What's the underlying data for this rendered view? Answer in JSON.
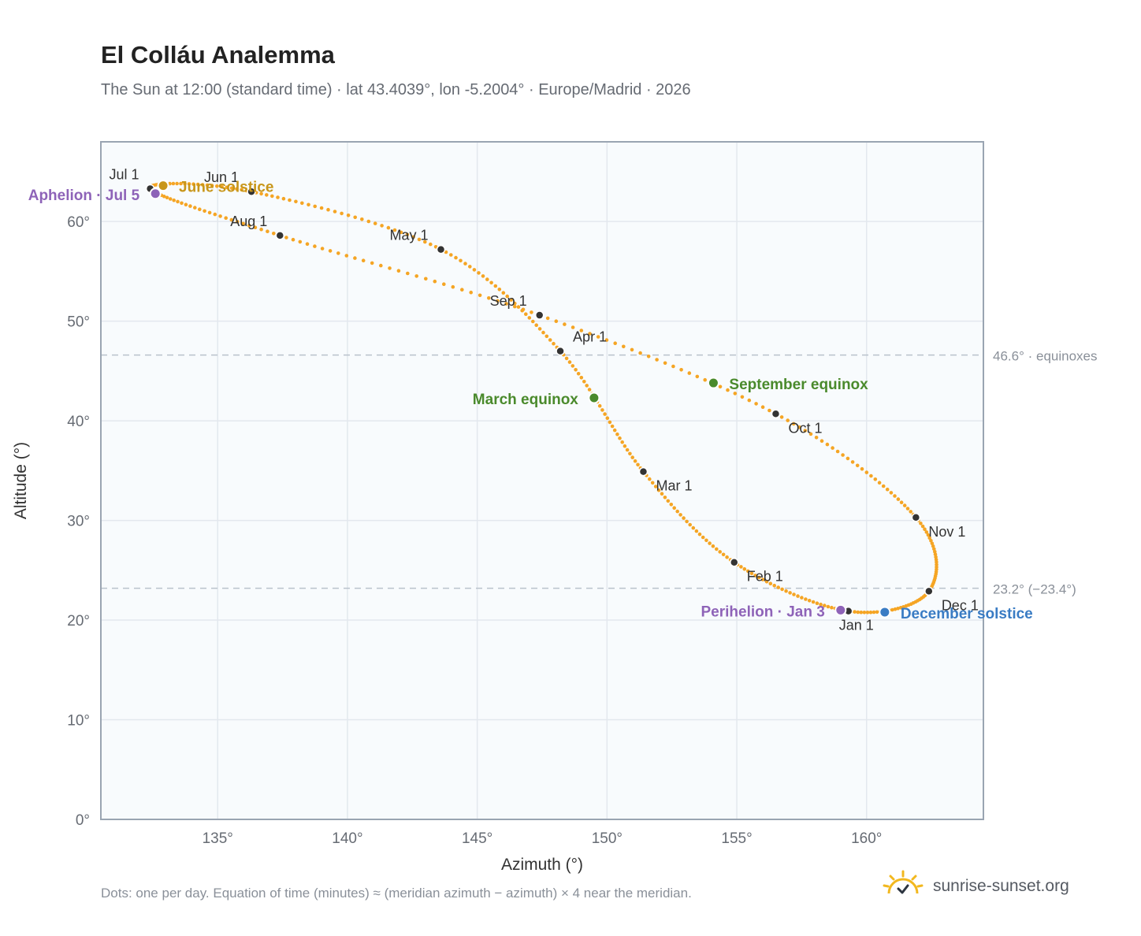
{
  "title": "El Colláu Analemma",
  "subtitle": "The Sun at 12:00 (standard time) · lat 43.4039°, lon -5.2004° · Europe/Madrid · 2026",
  "footnote": "Dots: one per day. Equation of time (minutes) ≈ (meridian azimuth − azimuth) × 4 near the meridian.",
  "brand": {
    "text": "sunrise-sunset.org",
    "icon": "sun-logo-icon",
    "color": "#f2b81f"
  },
  "colors": {
    "path": "#f5a524",
    "month_marker": "#333333",
    "solstice_june": "#c8961a",
    "solstice_december": "#3a7cc4",
    "equinox": "#4a8a2c",
    "apsis": "#8e63b8",
    "reference_line": "#b9c2cc",
    "plot_background": "#f8fbfd",
    "grid": "#e3e8ee",
    "axis_text": "#666b73"
  },
  "chart_data": {
    "type": "scatter",
    "xlabel": "Azimuth (°)",
    "ylabel": "Altitude (°)",
    "xlim": [
      130.5,
      164.5
    ],
    "ylim": [
      0,
      68
    ],
    "x_ticks": [
      135,
      140,
      145,
      150,
      155,
      160
    ],
    "x_tick_labels": [
      "135°",
      "140°",
      "145°",
      "150°",
      "155°",
      "160°"
    ],
    "y_ticks": [
      0,
      10,
      20,
      30,
      40,
      50,
      60
    ],
    "y_tick_labels": [
      "0°",
      "10°",
      "20°",
      "30°",
      "40°",
      "50°",
      "60°"
    ],
    "grid": true,
    "reference_lines": [
      {
        "y": 46.6,
        "label": "46.6° · equinoxes"
      },
      {
        "y": 23.2,
        "label": "23.2° (−23.4°)"
      }
    ],
    "month_markers": [
      {
        "label": "Jan 1",
        "x": 159.3,
        "y": 20.9
      },
      {
        "label": "Feb 1",
        "x": 154.9,
        "y": 25.8
      },
      {
        "label": "Mar 1",
        "x": 151.4,
        "y": 34.9
      },
      {
        "label": "Apr 1",
        "x": 148.2,
        "y": 47.0
      },
      {
        "label": "May 1",
        "x": 143.6,
        "y": 57.2
      },
      {
        "label": "Jun 1",
        "x": 136.3,
        "y": 63.0
      },
      {
        "label": "Jul 1",
        "x": 132.4,
        "y": 63.3
      },
      {
        "label": "Aug 1",
        "x": 137.4,
        "y": 58.6
      },
      {
        "label": "Sep 1",
        "x": 147.4,
        "y": 50.6
      },
      {
        "label": "Oct 1",
        "x": 156.5,
        "y": 40.7
      },
      {
        "label": "Nov 1",
        "x": 161.9,
        "y": 30.3
      },
      {
        "label": "Dec 1",
        "x": 162.4,
        "y": 22.9
      }
    ],
    "special_points": [
      {
        "label": "June solstice",
        "x": 132.9,
        "y": 63.6,
        "kind": "solstice_june"
      },
      {
        "label": "Aphelion · Jul 5",
        "x": 132.6,
        "y": 62.8,
        "kind": "apsis"
      },
      {
        "label": "March equinox",
        "x": 149.5,
        "y": 42.3,
        "kind": "equinox"
      },
      {
        "label": "September equinox",
        "x": 154.1,
        "y": 43.8,
        "kind": "equinox"
      },
      {
        "label": "Perihelion · Jan 3",
        "x": 159.0,
        "y": 21.0,
        "kind": "apsis"
      },
      {
        "label": "December solstice",
        "x": 160.7,
        "y": 20.8,
        "kind": "solstice_december"
      }
    ]
  }
}
